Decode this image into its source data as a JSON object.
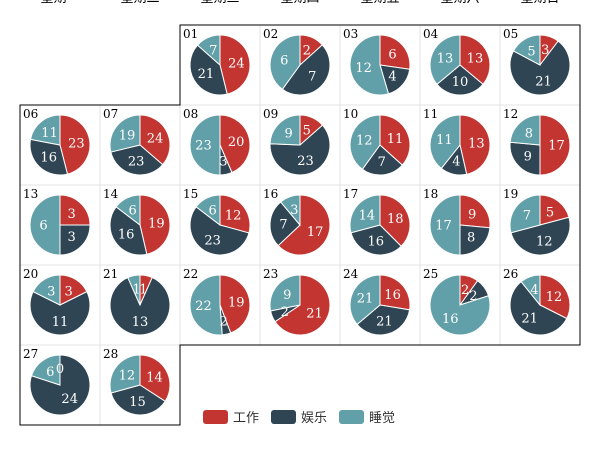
{
  "chart_data": {
    "type": "pie",
    "layout": "calendar",
    "weekday_labels": [
      "星期一",
      "星期二",
      "星期三",
      "星期四",
      "星期五",
      "星期六",
      "星期日"
    ],
    "legend": [
      {
        "label": "工作",
        "color": "#c23531"
      },
      {
        "label": "娱乐",
        "color": "#2f4554"
      },
      {
        "label": "睡觉",
        "color": "#61a0a8"
      }
    ],
    "series_keys": [
      "work",
      "play",
      "sleep"
    ],
    "days": [
      {
        "day": "01",
        "weekday": 2,
        "values": [
          24,
          21,
          7
        ]
      },
      {
        "day": "02",
        "weekday": 3,
        "values": [
          2,
          7,
          6
        ]
      },
      {
        "day": "03",
        "weekday": 4,
        "values": [
          6,
          4,
          12
        ]
      },
      {
        "day": "04",
        "weekday": 5,
        "values": [
          13,
          10,
          13
        ]
      },
      {
        "day": "05",
        "weekday": 6,
        "values": [
          3,
          21,
          5
        ]
      },
      {
        "day": "06",
        "weekday": 0,
        "values": [
          23,
          16,
          11
        ]
      },
      {
        "day": "07",
        "weekday": 1,
        "values": [
          24,
          23,
          19
        ]
      },
      {
        "day": "08",
        "weekday": 2,
        "values": [
          20,
          3,
          23
        ]
      },
      {
        "day": "09",
        "weekday": 3,
        "values": [
          5,
          23,
          9
        ]
      },
      {
        "day": "10",
        "weekday": 4,
        "values": [
          11,
          7,
          12
        ]
      },
      {
        "day": "11",
        "weekday": 5,
        "values": [
          13,
          4,
          11
        ]
      },
      {
        "day": "12",
        "weekday": 6,
        "values": [
          17,
          9,
          8
        ]
      },
      {
        "day": "13",
        "weekday": 0,
        "values": [
          3,
          3,
          6
        ]
      },
      {
        "day": "14",
        "weekday": 1,
        "values": [
          19,
          16,
          6
        ]
      },
      {
        "day": "15",
        "weekday": 2,
        "values": [
          12,
          23,
          6
        ]
      },
      {
        "day": "16",
        "weekday": 3,
        "values": [
          17,
          7,
          3
        ]
      },
      {
        "day": "17",
        "weekday": 4,
        "values": [
          18,
          16,
          14
        ]
      },
      {
        "day": "18",
        "weekday": 5,
        "values": [
          9,
          8,
          17
        ]
      },
      {
        "day": "19",
        "weekday": 6,
        "values": [
          5,
          12,
          7
        ]
      },
      {
        "day": "20",
        "weekday": 0,
        "values": [
          3,
          11,
          3
        ]
      },
      {
        "day": "21",
        "weekday": 1,
        "values": [
          1,
          13,
          1
        ]
      },
      {
        "day": "22",
        "weekday": 2,
        "values": [
          19,
          2,
          22
        ]
      },
      {
        "day": "23",
        "weekday": 3,
        "values": [
          21,
          2,
          9
        ]
      },
      {
        "day": "24",
        "weekday": 4,
        "values": [
          16,
          21,
          21
        ]
      },
      {
        "day": "25",
        "weekday": 5,
        "values": [
          2,
          2,
          16
        ]
      },
      {
        "day": "26",
        "weekday": 6,
        "values": [
          12,
          21,
          4
        ]
      },
      {
        "day": "27",
        "weekday": 0,
        "values": [
          0,
          24,
          6
        ]
      },
      {
        "day": "28",
        "weekday": 1,
        "values": [
          14,
          15,
          12
        ]
      }
    ]
  }
}
